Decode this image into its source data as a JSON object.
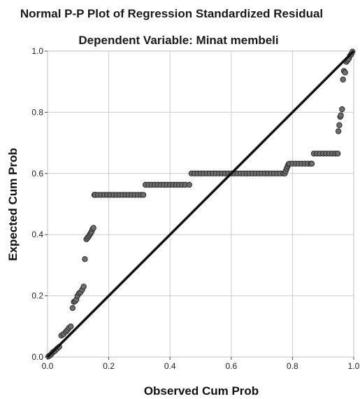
{
  "chart_data": {
    "type": "scatter",
    "title": "Normal P-P Plot of Regression Standardized Residual",
    "subtitle": "Dependent Variable: Minat membeli",
    "xlabel": "Observed Cum Prob",
    "ylabel": "Expected Cum Prob",
    "xlim": [
      0.0,
      1.0
    ],
    "ylim": [
      0.0,
      1.0
    ],
    "x_ticks": [
      "0.0",
      "0.2",
      "0.4",
      "0.6",
      "0.8",
      "1.0"
    ],
    "y_ticks": [
      "0.0",
      "0.2",
      "0.4",
      "0.6",
      "0.8",
      "1.0"
    ],
    "grid": true,
    "reference_line": {
      "from": [
        0,
        0
      ],
      "to": [
        1,
        1
      ]
    },
    "colors": {
      "point_fill": "#6e6e6e",
      "point_stroke": "#2a2a2a",
      "line": "#111111",
      "grid": "#cccccc"
    },
    "series": [
      {
        "x": [
          0.003,
          0.008,
          0.013,
          0.018,
          0.024,
          0.031,
          0.038,
          0.045,
          0.052,
          0.06,
          0.065,
          0.07,
          0.076,
          0.082,
          0.086,
          0.09,
          0.094,
          0.098,
          0.103,
          0.108,
          0.113,
          0.118,
          0.122,
          0.127,
          0.131,
          0.135,
          0.138,
          0.141,
          0.144,
          0.147,
          0.15,
          0.153,
          0.156,
          0.155,
          0.165,
          0.175,
          0.185,
          0.195,
          0.205,
          0.215,
          0.225,
          0.235,
          0.245,
          0.255,
          0.265,
          0.275,
          0.285,
          0.295,
          0.305,
          0.313,
          0.32,
          0.33,
          0.34,
          0.35,
          0.36,
          0.37,
          0.38,
          0.39,
          0.4,
          0.41,
          0.42,
          0.43,
          0.44,
          0.45,
          0.463,
          0.47,
          0.48,
          0.49,
          0.5,
          0.51,
          0.52,
          0.53,
          0.54,
          0.55,
          0.56,
          0.57,
          0.58,
          0.59,
          0.6,
          0.61,
          0.62,
          0.63,
          0.64,
          0.65,
          0.66,
          0.67,
          0.68,
          0.69,
          0.7,
          0.71,
          0.72,
          0.73,
          0.74,
          0.75,
          0.76,
          0.77,
          0.775,
          0.778,
          0.781,
          0.784,
          0.787,
          0.79,
          0.8,
          0.81,
          0.82,
          0.83,
          0.84,
          0.85,
          0.86,
          0.863,
          0.87,
          0.88,
          0.89,
          0.9,
          0.91,
          0.92,
          0.93,
          0.94,
          0.948,
          0.95,
          0.953,
          0.956,
          0.958,
          0.962,
          0.965,
          0.968,
          0.972,
          0.976,
          0.98,
          0.984,
          0.988,
          0.992,
          0.996
        ],
        "y": [
          0.002,
          0.005,
          0.01,
          0.016,
          0.02,
          0.027,
          0.033,
          0.07,
          0.075,
          0.083,
          0.088,
          0.095,
          0.1,
          0.16,
          0.18,
          0.182,
          0.188,
          0.2,
          0.208,
          0.212,
          0.22,
          0.23,
          0.32,
          0.385,
          0.39,
          0.395,
          0.4,
          0.405,
          0.41,
          0.418,
          0.422,
          0.53,
          0.53,
          0.53,
          0.53,
          0.53,
          0.53,
          0.53,
          0.53,
          0.53,
          0.53,
          0.53,
          0.53,
          0.53,
          0.53,
          0.53,
          0.53,
          0.53,
          0.53,
          0.53,
          0.563,
          0.563,
          0.563,
          0.563,
          0.563,
          0.563,
          0.563,
          0.563,
          0.563,
          0.563,
          0.563,
          0.563,
          0.563,
          0.563,
          0.563,
          0.6,
          0.6,
          0.6,
          0.6,
          0.6,
          0.6,
          0.6,
          0.6,
          0.6,
          0.6,
          0.6,
          0.6,
          0.6,
          0.6,
          0.6,
          0.6,
          0.6,
          0.6,
          0.6,
          0.6,
          0.6,
          0.6,
          0.6,
          0.6,
          0.6,
          0.6,
          0.6,
          0.6,
          0.6,
          0.6,
          0.6,
          0.6,
          0.608,
          0.616,
          0.623,
          0.63,
          0.632,
          0.632,
          0.632,
          0.632,
          0.632,
          0.632,
          0.632,
          0.632,
          0.632,
          0.665,
          0.665,
          0.665,
          0.665,
          0.665,
          0.665,
          0.665,
          0.665,
          0.665,
          0.738,
          0.758,
          0.785,
          0.79,
          0.81,
          0.907,
          0.935,
          0.93,
          0.965,
          0.97,
          0.975,
          0.985,
          0.99,
          0.998
        ]
      }
    ]
  }
}
